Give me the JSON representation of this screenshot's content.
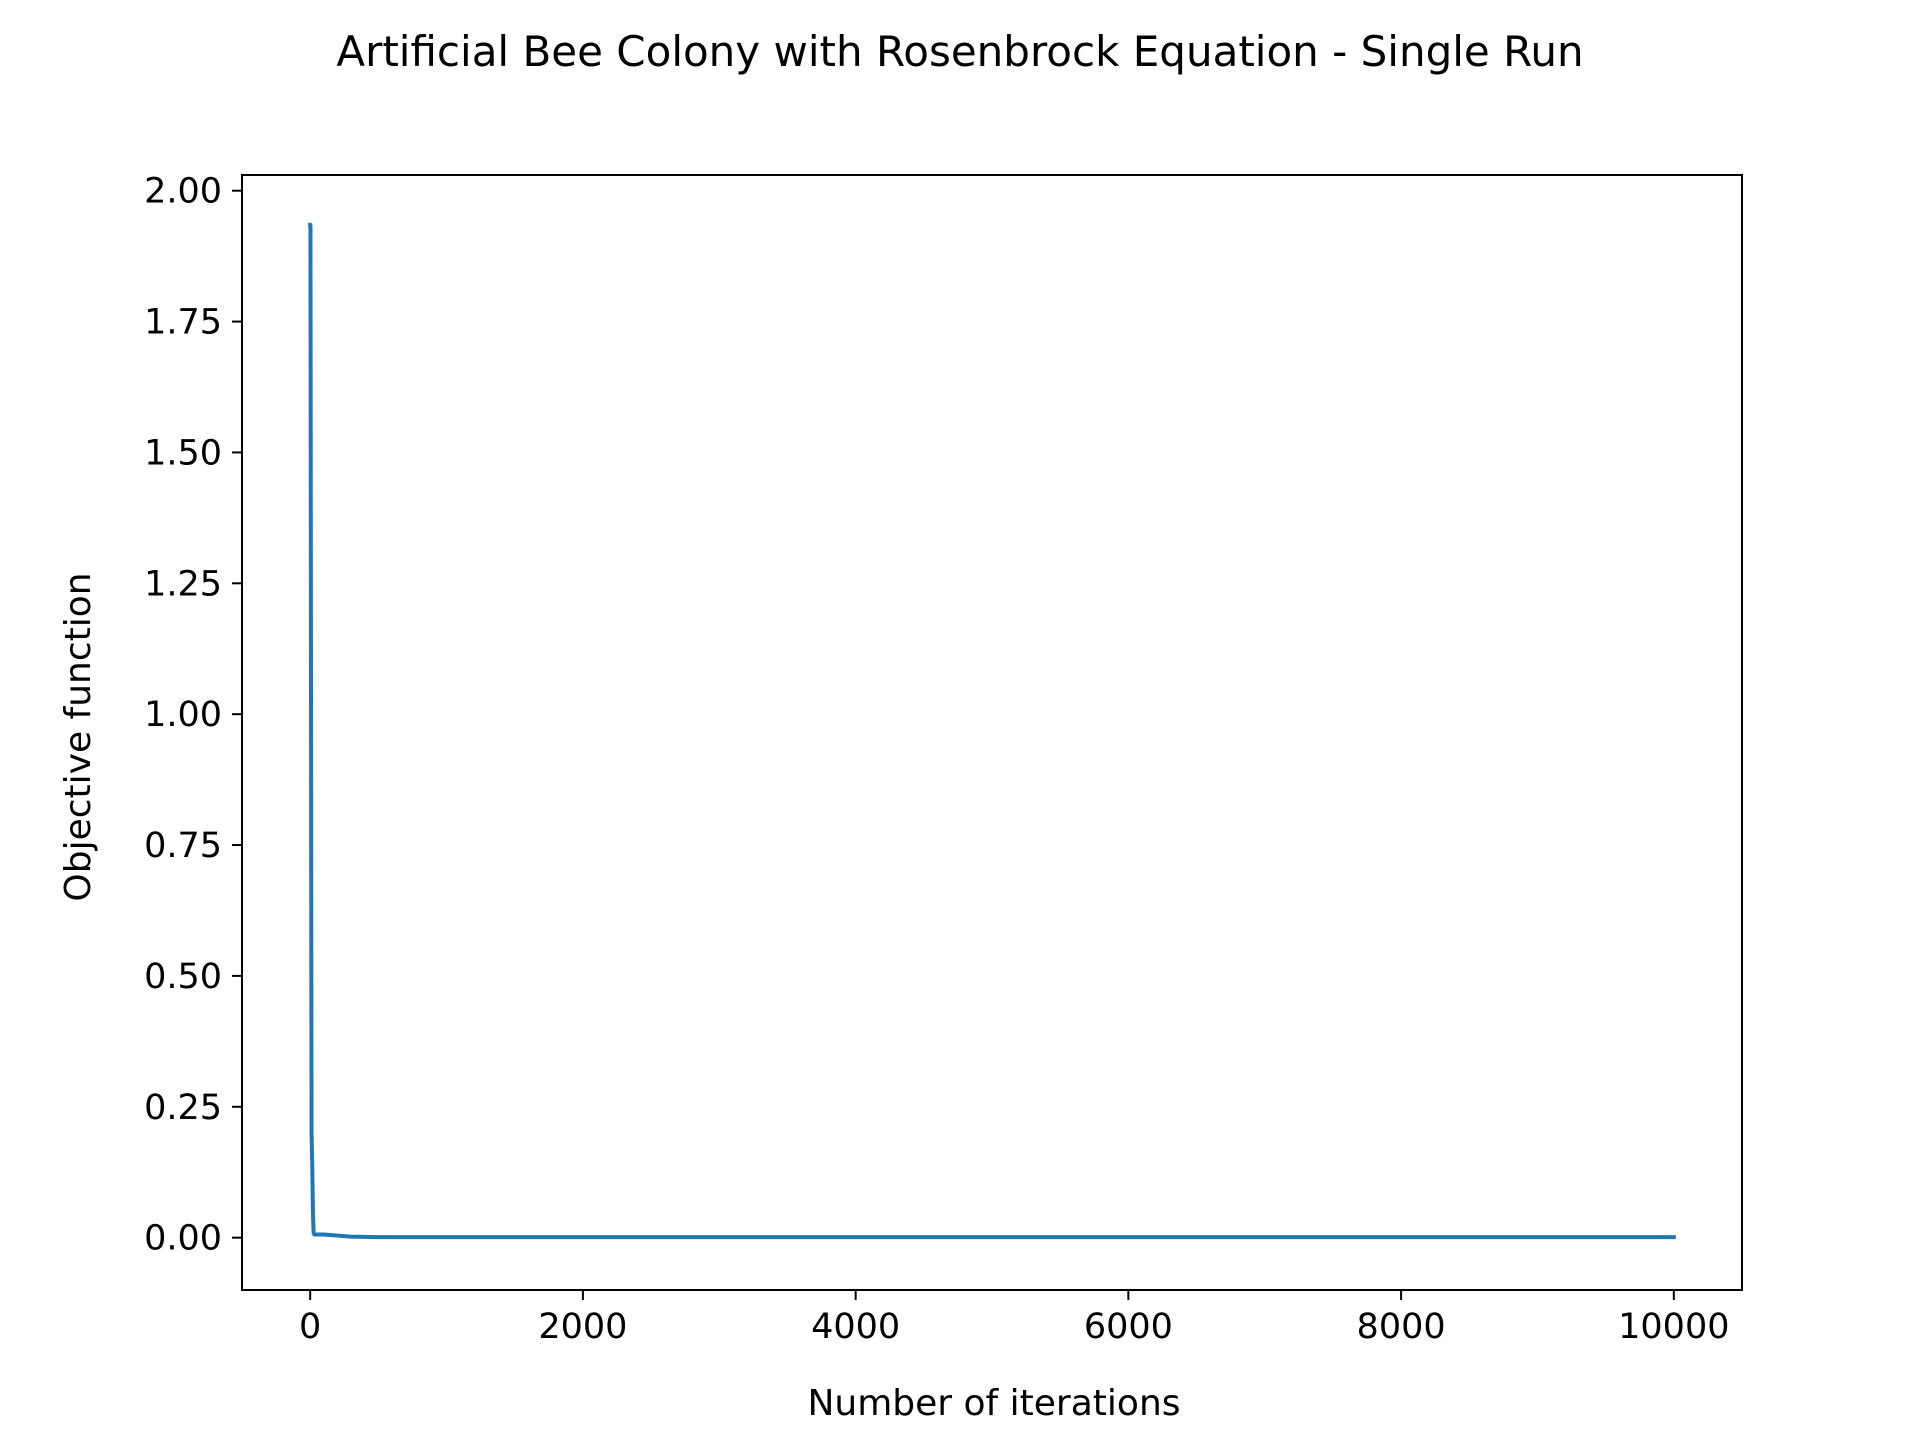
{
  "chart_data": {
    "type": "line",
    "title": "Artificial Bee Colony with Rosenbrock Equation - Single Run",
    "xlabel": "Number of iterations",
    "ylabel": "Objective function",
    "xlim": [
      -500,
      10500
    ],
    "ylim": [
      -0.1,
      2.03
    ],
    "xticks": [
      0,
      2000,
      4000,
      6000,
      8000,
      10000
    ],
    "xtick_labels": [
      "0",
      "2000",
      "4000",
      "6000",
      "8000",
      "10000"
    ],
    "yticks": [
      0.0,
      0.25,
      0.5,
      0.75,
      1.0,
      1.25,
      1.5,
      1.75,
      2.0
    ],
    "ytick_labels": [
      "0.00",
      "0.25",
      "0.50",
      "0.75",
      "1.00",
      "1.25",
      "1.50",
      "1.75",
      "2.00"
    ],
    "grid": false,
    "series": [
      {
        "color": "#1f77b4",
        "x": [
          0,
          1,
          2,
          5,
          8,
          10,
          15,
          20,
          25,
          30,
          60,
          100,
          150,
          200,
          250,
          300,
          500,
          1000,
          2000,
          4000,
          6000,
          8000,
          10000
        ],
        "y": [
          1.935,
          1.935,
          1.93,
          1.3,
          0.6,
          0.2,
          0.14,
          0.05,
          0.01,
          0.006,
          0.006,
          0.006,
          0.005,
          0.004,
          0.003,
          0.002,
          0.001,
          0.001,
          0.001,
          0.001,
          0.001,
          0.001,
          0.001
        ]
      }
    ]
  }
}
